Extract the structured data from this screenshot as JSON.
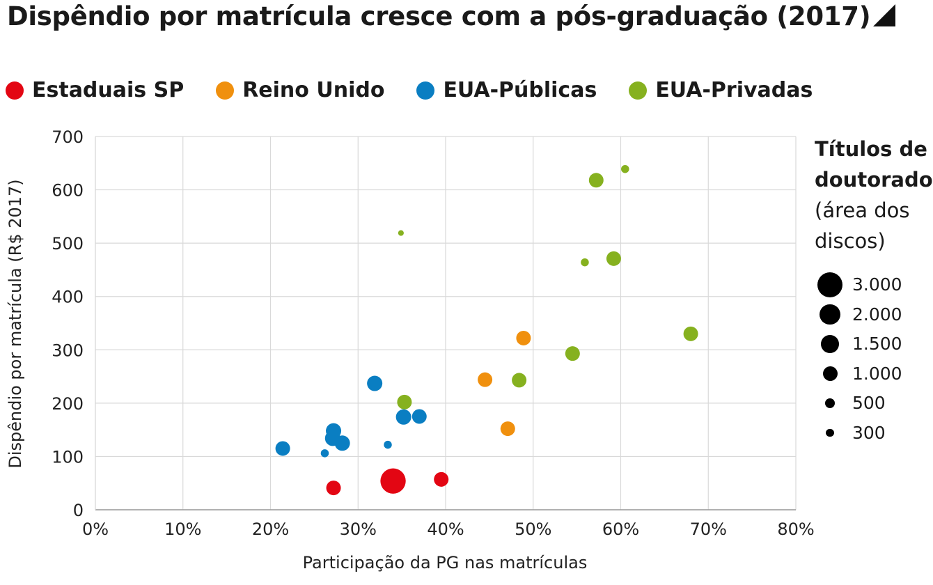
{
  "title": "Dispêndio por matrícula cresce com a pós-graduação (2017)",
  "legend": [
    {
      "label": "Estaduais SP",
      "color": "#e30613"
    },
    {
      "label": "Reino Unido",
      "color": "#f0900e"
    },
    {
      "label": "EUA-Públicas",
      "color": "#0a7ec2"
    },
    {
      "label": "EUA-Privadas",
      "color": "#86b11f"
    }
  ],
  "size_legend": {
    "title_line1": "Títulos de",
    "title_line2": "doutorado",
    "sub_line1": "(área dos",
    "sub_line2": "discos)",
    "entries": [
      {
        "label": "3.000",
        "value": 3000
      },
      {
        "label": "2.000",
        "value": 2000
      },
      {
        "label": "1.500",
        "value": 1500
      },
      {
        "label": "1.000",
        "value": 1000
      },
      {
        "label": "500",
        "value": 500
      },
      {
        "label": "300",
        "value": 300
      }
    ]
  },
  "chart_data": {
    "type": "scatter",
    "title": "Dispêndio por matrícula cresce com a pós-graduação (2017)",
    "xlabel": "Participação da PG nas matrículas",
    "ylabel": "Dispêndio por matrícula (R$ 2017)",
    "xlim": [
      0,
      0.8
    ],
    "ylim": [
      0,
      700
    ],
    "x_ticks": [
      "0%",
      "10%",
      "20%",
      "30%",
      "40%",
      "50%",
      "60%",
      "70%",
      "80%"
    ],
    "y_ticks": [
      "0",
      "100",
      "200",
      "300",
      "400",
      "500",
      "600",
      "700"
    ],
    "grid": true,
    "series": [
      {
        "name": "Estaduais SP",
        "color": "#e30613",
        "points": [
          {
            "x": 0.272,
            "y": 41,
            "size": 1000
          },
          {
            "x": 0.34,
            "y": 54,
            "size": 3000
          },
          {
            "x": 0.395,
            "y": 57,
            "size": 1000
          }
        ]
      },
      {
        "name": "Reino Unido",
        "color": "#f0900e",
        "points": [
          {
            "x": 0.445,
            "y": 244,
            "size": 1000
          },
          {
            "x": 0.489,
            "y": 322,
            "size": 1000
          },
          {
            "x": 0.471,
            "y": 152,
            "size": 1000
          }
        ]
      },
      {
        "name": "EUA-Públicas",
        "color": "#0a7ec2",
        "points": [
          {
            "x": 0.214,
            "y": 115,
            "size": 1000
          },
          {
            "x": 0.262,
            "y": 106,
            "size": 300
          },
          {
            "x": 0.272,
            "y": 148,
            "size": 1100
          },
          {
            "x": 0.271,
            "y": 134,
            "size": 1100
          },
          {
            "x": 0.282,
            "y": 125,
            "size": 1100
          },
          {
            "x": 0.319,
            "y": 237,
            "size": 1100
          },
          {
            "x": 0.334,
            "y": 122,
            "size": 300
          },
          {
            "x": 0.352,
            "y": 174,
            "size": 1100
          },
          {
            "x": 0.37,
            "y": 175,
            "size": 1000
          }
        ]
      },
      {
        "name": "EUA-Privadas",
        "color": "#86b11f",
        "points": [
          {
            "x": 0.353,
            "y": 202,
            "size": 1000
          },
          {
            "x": 0.349,
            "y": 519,
            "size": 150
          },
          {
            "x": 0.484,
            "y": 243,
            "size": 1000
          },
          {
            "x": 0.545,
            "y": 293,
            "size": 1000
          },
          {
            "x": 0.559,
            "y": 464,
            "size": 300
          },
          {
            "x": 0.572,
            "y": 618,
            "size": 1000
          },
          {
            "x": 0.592,
            "y": 471,
            "size": 1000
          },
          {
            "x": 0.605,
            "y": 639,
            "size": 300
          },
          {
            "x": 0.68,
            "y": 330,
            "size": 1000
          }
        ]
      }
    ]
  }
}
